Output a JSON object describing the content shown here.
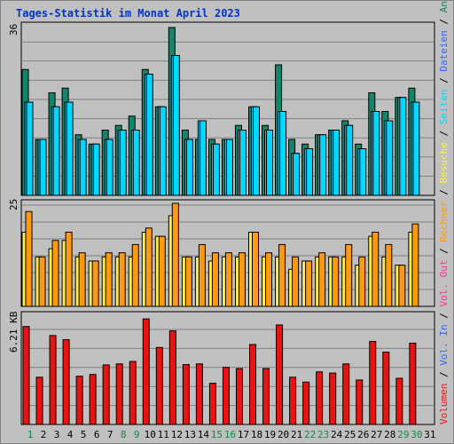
{
  "title": "Tages-Statistik im Monat April 2023",
  "colors": {
    "anfragen": "#14846a",
    "dateien": "#22ccff",
    "seiten": "#00d8ff",
    "besuche": "#ffee44",
    "rechner": "#ff9912",
    "volumen": "#ee1111",
    "vol_out": "#ff3399",
    "vol_in": "#3366ff",
    "weekend": "#118844",
    "weekday": "#000000"
  },
  "axis_labels": {
    "top_max": "36",
    "mid_max": "25",
    "bottom_max": "6.21 KB"
  },
  "legend": {
    "top": [
      "Anfragen",
      "Dateien",
      "Seiten"
    ],
    "mid": [
      "Besuche",
      "Rechner"
    ],
    "bottom": [
      "Volumen",
      "Vol. In",
      "Vol. Out"
    ],
    "separator": " / "
  },
  "chart_data": [
    {
      "type": "bar",
      "title": "",
      "categories": [
        "1",
        "2",
        "3",
        "4",
        "5",
        "6",
        "7",
        "8",
        "9",
        "10",
        "11",
        "12",
        "13",
        "14",
        "15",
        "16",
        "17",
        "18",
        "19",
        "20",
        "21",
        "22",
        "23",
        "24",
        "25",
        "26",
        "27",
        "28",
        "29",
        "30",
        "31"
      ],
      "weekend_days": [
        1,
        8,
        9,
        15,
        16,
        22,
        23,
        29,
        30
      ],
      "ylim": [
        0,
        36
      ],
      "series": [
        {
          "name": "Anfragen",
          "values": [
            27,
            12,
            22,
            23,
            13,
            11,
            14,
            15,
            17,
            27,
            19,
            36,
            14,
            12,
            12,
            12,
            15,
            19,
            15,
            28,
            12,
            11,
            13,
            14,
            16,
            11,
            22,
            18,
            21,
            23,
            0
          ]
        },
        {
          "name": "Dateien",
          "values": [
            20,
            12,
            19,
            20,
            12,
            11,
            12,
            14,
            14,
            26,
            19,
            30,
            12,
            16,
            11,
            12,
            14,
            19,
            14,
            18,
            9,
            10,
            13,
            14,
            15,
            10,
            18,
            16,
            21,
            20,
            0
          ]
        },
        {
          "name": "Seiten",
          "values": [
            20,
            12,
            19,
            20,
            12,
            11,
            12,
            14,
            14,
            26,
            19,
            30,
            12,
            16,
            11,
            12,
            14,
            19,
            14,
            18,
            9,
            10,
            13,
            14,
            15,
            10,
            18,
            16,
            21,
            20,
            0
          ]
        }
      ]
    },
    {
      "type": "bar",
      "title": "",
      "categories": [
        "1",
        "2",
        "3",
        "4",
        "5",
        "6",
        "7",
        "8",
        "9",
        "10",
        "11",
        "12",
        "13",
        "14",
        "15",
        "16",
        "17",
        "18",
        "19",
        "20",
        "21",
        "22",
        "23",
        "24",
        "25",
        "26",
        "27",
        "28",
        "29",
        "30",
        "31"
      ],
      "ylim": [
        0,
        25
      ],
      "series": [
        {
          "name": "Besuche",
          "values": [
            18,
            12,
            14,
            16,
            12,
            11,
            12,
            12,
            12,
            18,
            17,
            22,
            12,
            12,
            11,
            12,
            12,
            18,
            12,
            12,
            9,
            11,
            12,
            12,
            12,
            10,
            17,
            12,
            10,
            18,
            0
          ]
        },
        {
          "name": "Rechner",
          "values": [
            23,
            12,
            16,
            18,
            13,
            11,
            13,
            13,
            15,
            19,
            17,
            25,
            12,
            15,
            13,
            13,
            13,
            18,
            13,
            15,
            12,
            11,
            13,
            12,
            15,
            12,
            18,
            15,
            10,
            20,
            0
          ]
        }
      ]
    },
    {
      "type": "bar",
      "title": "",
      "categories": [
        "1",
        "2",
        "3",
        "4",
        "5",
        "6",
        "7",
        "8",
        "9",
        "10",
        "11",
        "12",
        "13",
        "14",
        "15",
        "16",
        "17",
        "18",
        "19",
        "20",
        "21",
        "22",
        "23",
        "24",
        "25",
        "26",
        "27",
        "28",
        "29",
        "30",
        "31"
      ],
      "ylim": [
        0,
        6.21
      ],
      "series": [
        {
          "name": "Volumen",
          "values": [
            5.66,
            2.73,
            5.14,
            4.9,
            2.79,
            2.89,
            3.44,
            3.5,
            3.64,
            6.1,
            4.45,
            5.41,
            3.46,
            3.5,
            2.38,
            3.3,
            3.23,
            4.62,
            3.23,
            5.75,
            2.73,
            2.45,
            3.04,
            2.97,
            3.5,
            2.57,
            4.8,
            4.18,
            2.67,
            4.7,
            0
          ]
        }
      ]
    }
  ]
}
